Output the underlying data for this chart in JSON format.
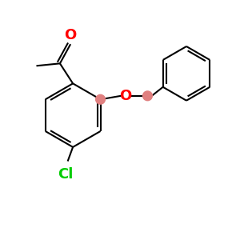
{
  "bg_color": "#ffffff",
  "bond_color": "#000000",
  "oxygen_color": "#ff0000",
  "chlorine_color": "#00cc00",
  "ch2_color": "#e08080",
  "bond_width": 1.5,
  "font_size_O": 13,
  "font_size_Cl": 13,
  "figsize": [
    3.0,
    3.0
  ],
  "dpi": 100,
  "xlim": [
    0,
    10
  ],
  "ylim": [
    0,
    10
  ]
}
